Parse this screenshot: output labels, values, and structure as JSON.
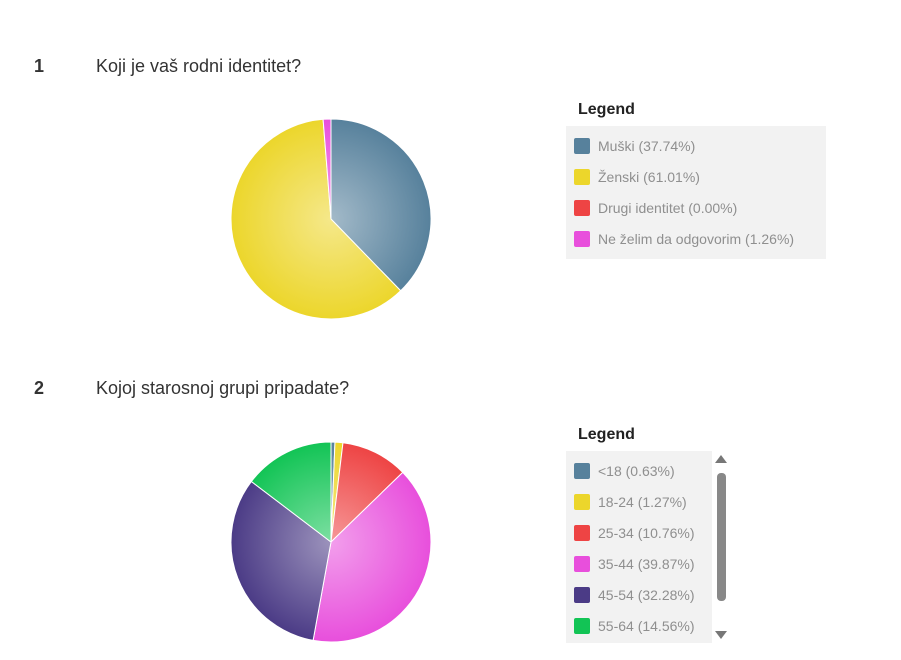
{
  "questions": [
    {
      "number": "1",
      "text": "Koji je vaš rodni identitet?",
      "legend_title": "Legend"
    },
    {
      "number": "2",
      "text": "Kojoj starosnoj grupi pripadate?",
      "legend_title": "Legend"
    }
  ],
  "chart_data": [
    {
      "type": "pie",
      "title": "",
      "categories": [
        "Muški",
        "Ženski",
        "Drugi identitet",
        "Ne želim da odgovorim"
      ],
      "values": [
        37.74,
        61.01,
        0.0,
        1.26
      ],
      "legend_labels": [
        "Muški (37.74%)",
        "Ženski (61.01%)",
        "Drugi identitet (0.00%)",
        "Ne želim da odgovorim (1.26%)"
      ],
      "colors": [
        "#57819c",
        "#ecd62b",
        "#ee4444",
        "#e84fdc"
      ],
      "legend_placement": "right"
    },
    {
      "type": "pie",
      "title": "",
      "categories": [
        "<18",
        "18-24",
        "25-34",
        "35-44",
        "45-54",
        "55-64"
      ],
      "values": [
        0.63,
        1.27,
        10.76,
        39.87,
        32.28,
        14.56
      ],
      "legend_labels": [
        "<18 (0.63%)",
        "18-24 (1.27%)",
        "25-34 (10.76%)",
        "35-44 (39.87%)",
        "45-54 (32.28%)",
        "55-64 (14.56%)"
      ],
      "colors": [
        "#57819c",
        "#ecd62b",
        "#ee4444",
        "#e84fdc",
        "#4b3b86",
        "#12c455"
      ],
      "legend_placement": "right",
      "legend_scrollable": true
    }
  ]
}
